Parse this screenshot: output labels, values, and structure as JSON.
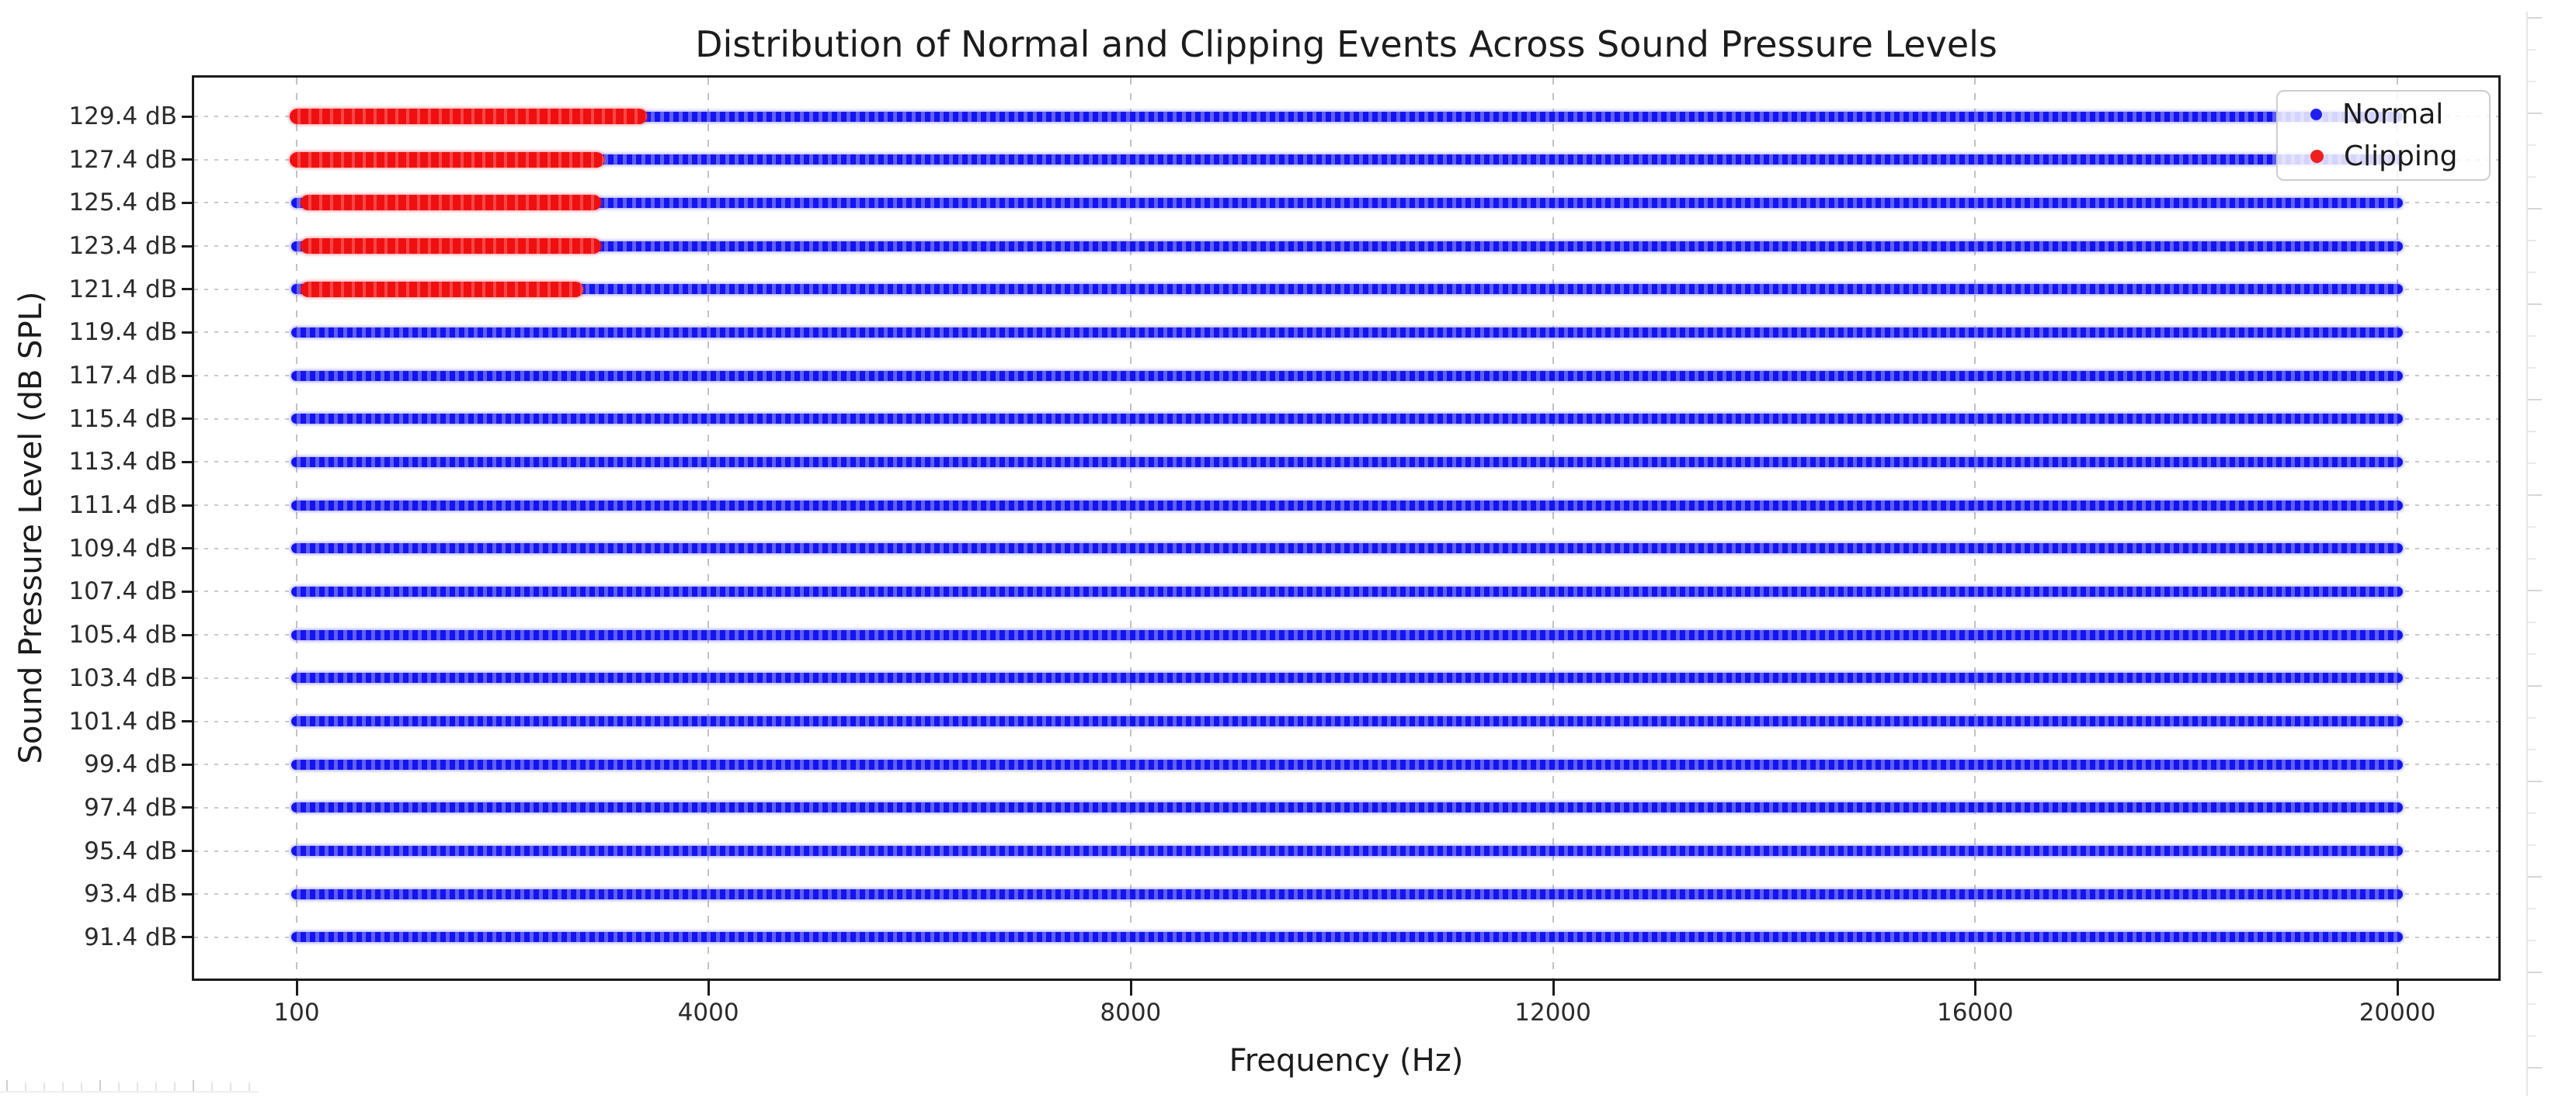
{
  "chart_data": {
    "type": "scatter",
    "title": "Distribution of Normal and Clipping Events Across Sound Pressure Levels",
    "xlabel": "Frequency (Hz)",
    "ylabel": "Sound Pressure Level (dB SPL)",
    "x_range_hz": [
      100,
      20000
    ],
    "x_ticks": [
      {
        "value": 100,
        "label": "100"
      },
      {
        "value": 4000,
        "label": "4000"
      },
      {
        "value": 8000,
        "label": "8000"
      },
      {
        "value": 12000,
        "label": "12000"
      },
      {
        "value": 16000,
        "label": "16000"
      },
      {
        "value": 20000,
        "label": "20000"
      }
    ],
    "grid": {
      "vertical_style": "dashed",
      "horizontal_style": "dotted"
    },
    "legend": {
      "position": "upper right",
      "entries": [
        {
          "label": "Normal",
          "color": "#1414ee",
          "marker": "dot"
        },
        {
          "label": "Clipping",
          "color": "#ee1010",
          "marker": "dot"
        }
      ]
    },
    "y_levels": [
      {
        "label": "129.4 dB",
        "spl_db": 129.4,
        "normal_hz": [
          100,
          20000
        ],
        "clipping_hz": [
          100,
          3350
        ]
      },
      {
        "label": "127.4 dB",
        "spl_db": 127.4,
        "normal_hz": [
          100,
          20000
        ],
        "clipping_hz": [
          100,
          2950
        ]
      },
      {
        "label": "125.4 dB",
        "spl_db": 125.4,
        "normal_hz": [
          100,
          20000
        ],
        "clipping_hz": [
          200,
          2920
        ]
      },
      {
        "label": "123.4 dB",
        "spl_db": 123.4,
        "normal_hz": [
          100,
          20000
        ],
        "clipping_hz": [
          200,
          2920
        ]
      },
      {
        "label": "121.4 dB",
        "spl_db": 121.4,
        "normal_hz": [
          100,
          20000
        ],
        "clipping_hz": [
          200,
          2750
        ]
      },
      {
        "label": "119.4 dB",
        "spl_db": 119.4,
        "normal_hz": [
          100,
          20000
        ],
        "clipping_hz": null
      },
      {
        "label": "117.4 dB",
        "spl_db": 117.4,
        "normal_hz": [
          100,
          20000
        ],
        "clipping_hz": null
      },
      {
        "label": "115.4 dB",
        "spl_db": 115.4,
        "normal_hz": [
          100,
          20000
        ],
        "clipping_hz": null
      },
      {
        "label": "113.4 dB",
        "spl_db": 113.4,
        "normal_hz": [
          100,
          20000
        ],
        "clipping_hz": null
      },
      {
        "label": "111.4 dB",
        "spl_db": 111.4,
        "normal_hz": [
          100,
          20000
        ],
        "clipping_hz": null
      },
      {
        "label": "109.4 dB",
        "spl_db": 109.4,
        "normal_hz": [
          100,
          20000
        ],
        "clipping_hz": null
      },
      {
        "label": "107.4 dB",
        "spl_db": 107.4,
        "normal_hz": [
          100,
          20000
        ],
        "clipping_hz": null
      },
      {
        "label": "105.4 dB",
        "spl_db": 105.4,
        "normal_hz": [
          100,
          20000
        ],
        "clipping_hz": null
      },
      {
        "label": "103.4 dB",
        "spl_db": 103.4,
        "normal_hz": [
          100,
          20000
        ],
        "clipping_hz": null
      },
      {
        "label": "101.4 dB",
        "spl_db": 101.4,
        "normal_hz": [
          100,
          20000
        ],
        "clipping_hz": null
      },
      {
        "label": "99.4 dB",
        "spl_db": 99.4,
        "normal_hz": [
          100,
          20000
        ],
        "clipping_hz": null
      },
      {
        "label": "97.4 dB",
        "spl_db": 97.4,
        "normal_hz": [
          100,
          20000
        ],
        "clipping_hz": null
      },
      {
        "label": "95.4 dB",
        "spl_db": 95.4,
        "normal_hz": [
          100,
          20000
        ],
        "clipping_hz": null
      },
      {
        "label": "93.4 dB",
        "spl_db": 93.4,
        "normal_hz": [
          100,
          20000
        ],
        "clipping_hz": null
      },
      {
        "label": "91.4 dB",
        "spl_db": 91.4,
        "normal_hz": [
          100,
          20000
        ],
        "clipping_hz": null
      }
    ]
  },
  "colors": {
    "normal_dark": "#1414ee",
    "normal_light": "#5e5ef8",
    "clipping_dark": "#ee1010",
    "clipping_light": "#fa4545",
    "grid": "#c9c9c9",
    "spine": "#1b1b1b",
    "text": "#1c1c1c",
    "ruler": "#dddddd"
  }
}
